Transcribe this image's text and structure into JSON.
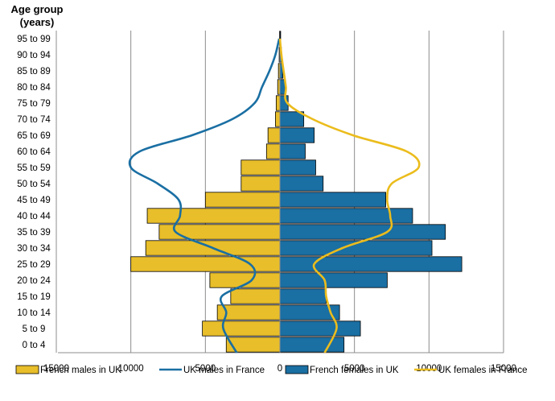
{
  "chart_data": {
    "type": "bar",
    "title": "Age group\n(years)",
    "xlabel": "",
    "ylabel": "Age group (years)",
    "categories": [
      "0 to 4",
      "5 to 9",
      "10 to 14",
      "15 to 19",
      "20 to 24",
      "25 to 29",
      "30 to 34",
      "35 to 39",
      "40 to 44",
      "45 to 49",
      "50 to 54",
      "55 to 59",
      "60 to 64",
      "65 to 69",
      "70 to 74",
      "75 to 79",
      "80 to 84",
      "85 to 89",
      "90 to 94",
      "95 to 99"
    ],
    "xlim": [
      -15000,
      15000
    ],
    "xticks": [
      -15000,
      -10000,
      -5000,
      0,
      5000,
      10000,
      15000
    ],
    "xtick_labels": [
      "15000",
      "10000",
      "5000",
      "0",
      "5000",
      "10000",
      "15000"
    ],
    "grid": true,
    "legend_position": "bottom",
    "series": [
      {
        "name": "French males in UK",
        "kind": "bar",
        "side": "left",
        "color": "#E8BE2A",
        "values": [
          3600,
          5200,
          4200,
          3300,
          4700,
          10000,
          9000,
          8100,
          8900,
          5000,
          2600,
          2600,
          900,
          800,
          300,
          250,
          150,
          100,
          50,
          20
        ]
      },
      {
        "name": "French females in UK",
        "kind": "bar",
        "side": "right",
        "color": "#1A6FA3",
        "values": [
          4300,
          5400,
          4000,
          3100,
          7200,
          12200,
          10200,
          11100,
          8900,
          7100,
          2900,
          2400,
          1700,
          2300,
          1600,
          550,
          350,
          200,
          100,
          50
        ]
      },
      {
        "name": "UK males in France",
        "kind": "line",
        "side": "left",
        "color": "#1A6FA3",
        "values": [
          2900,
          3800,
          3600,
          3900,
          1900,
          2000,
          4500,
          7000,
          6700,
          6800,
          8200,
          10000,
          9400,
          5900,
          3200,
          1700,
          1200,
          700,
          300,
          50
        ]
      },
      {
        "name": "UK females in France",
        "kind": "line",
        "side": "right",
        "color": "#EBBC1C",
        "values": [
          3000,
          3800,
          3400,
          3100,
          3000,
          2300,
          4200,
          7200,
          7400,
          7200,
          7500,
          9300,
          8500,
          4900,
          2200,
          500,
          400,
          250,
          100,
          0
        ]
      }
    ]
  },
  "legend": {
    "items": [
      {
        "label": "French males in UK",
        "kind": "bar",
        "color": "#E8BE2A"
      },
      {
        "label": "UK males in France",
        "kind": "line",
        "color": "#1A6FA3"
      },
      {
        "label": "French females in UK",
        "kind": "bar",
        "color": "#1A6FA3"
      },
      {
        "label": "UK females in France",
        "kind": "line",
        "color": "#EBBC1C"
      }
    ]
  }
}
